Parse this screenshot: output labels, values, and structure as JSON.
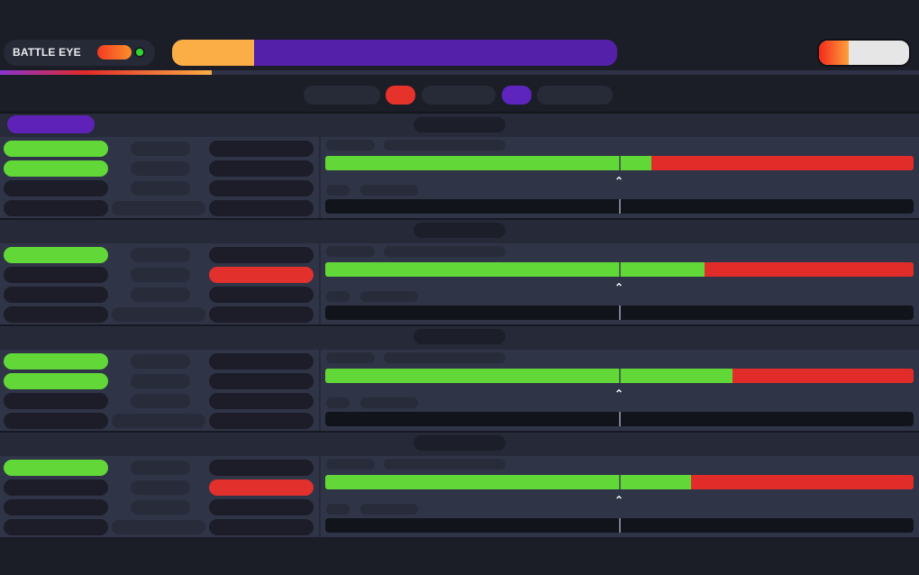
{
  "header": {
    "brand_label": "BATTLE EYE",
    "brand_toggle_state": "on",
    "status_dot_color": "#2fd62f",
    "main_progress": {
      "percent": 18.4,
      "fill_color": "#fbae45",
      "track_color": "#5420aa"
    },
    "slider": {
      "percent": 33,
      "fill_color": "#f5281c",
      "track_color": "#e6e6e6"
    },
    "load_line_percent": 23
  },
  "filters": [
    {
      "id": "filter-1",
      "color": "#272a37",
      "active": false
    },
    {
      "id": "filter-red",
      "color": "#e5332b",
      "active": true
    },
    {
      "id": "filter-2",
      "color": "#272a37",
      "active": false
    },
    {
      "id": "filter-purple",
      "color": "#5d25be",
      "active": true
    },
    {
      "id": "filter-3",
      "color": "#272a37",
      "active": false
    }
  ],
  "section": {
    "tag_color": "#5e22b8"
  },
  "colors": {
    "background": "#1b1d27",
    "green": "#62d838",
    "red": "#e2302c",
    "purple": "#5e22b8",
    "orange": "#fbae45",
    "panel": "#2f3447"
  },
  "groups": [
    {
      "left_pills": [
        "green",
        "green",
        "dark",
        "dark"
      ],
      "right_pills": [
        "dark",
        "dark",
        "dark",
        "dark"
      ],
      "bar_green_percent": 55.4,
      "marker_percent": 50
    },
    {
      "left_pills": [
        "green",
        "dark",
        "dark",
        "dark"
      ],
      "right_pills": [
        "dark",
        "red",
        "dark",
        "dark"
      ],
      "bar_green_percent": 64.4,
      "marker_percent": 50
    },
    {
      "left_pills": [
        "green",
        "green",
        "dark",
        "dark"
      ],
      "right_pills": [
        "dark",
        "dark",
        "dark",
        "dark"
      ],
      "bar_green_percent": 69.2,
      "marker_percent": 50
    },
    {
      "left_pills": [
        "green",
        "dark",
        "dark",
        "dark"
      ],
      "right_pills": [
        "dark",
        "red",
        "dark",
        "dark"
      ],
      "bar_green_percent": 62.2,
      "marker_percent": 50
    }
  ]
}
